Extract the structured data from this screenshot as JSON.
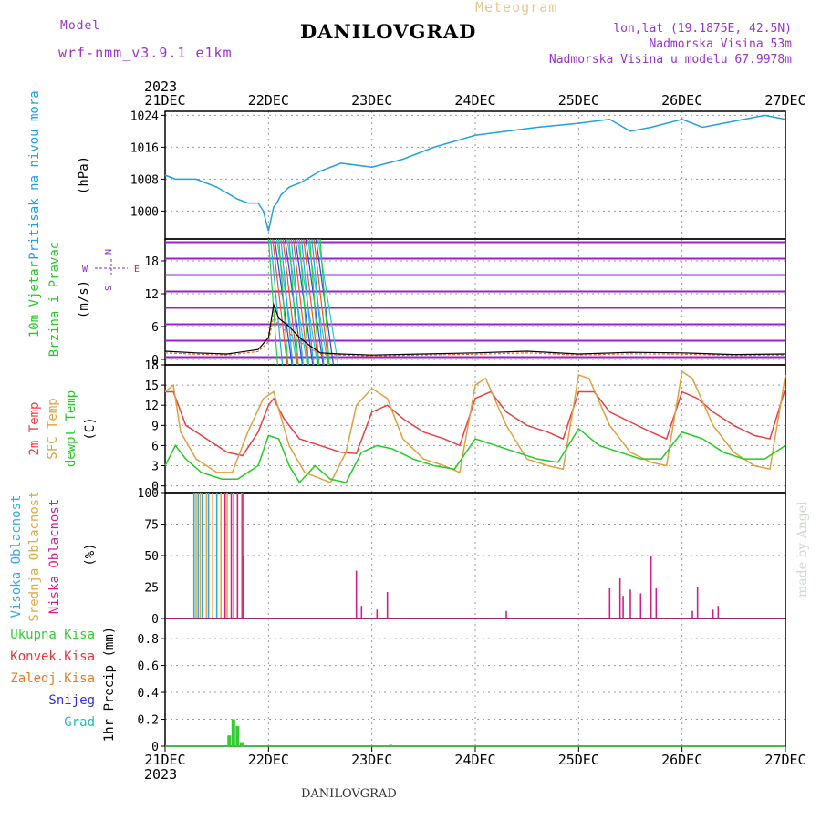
{
  "header": {
    "model_label": "Model",
    "model_name": "wrf-nmm_v3.9.1 e1km",
    "station": "DANILOVGRAD",
    "meteogram": "Meteogram",
    "lonlat": "lon,lat (19.1875E, 42.5N)",
    "elevation": "Nadmorska Visina 53m",
    "elevation_model": "Nadmorska Visina u modelu 67.9978m"
  },
  "footer": {
    "station": "DANILOVGRAD",
    "credit": "made by Angel"
  },
  "colors": {
    "pressure": "#22a0e0",
    "wind_purple": "#9922cc",
    "temp2m": "#e84040",
    "sfc": "#e0a040",
    "dewpt": "#22cc22",
    "high": "#33aadd",
    "mid": "#ddaa44",
    "low": "#cc2288",
    "rain": "#33cc33",
    "conv": "#ee3333",
    "frz": "#ee7722",
    "snow": "#3333dd",
    "hail": "#22bbbb"
  },
  "chart_data": [
    {
      "type": "line",
      "panel": "pressure",
      "ylabel": [
        "Pritisak na nivou mora",
        "(hPa)"
      ],
      "ylim": [
        993,
        1025
      ],
      "yticks": [
        1000,
        1008,
        1016,
        1024
      ],
      "xlim": [
        "2023-12-21 00",
        "2023-12-27 00"
      ],
      "xticks": [
        "21DEC",
        "22DEC",
        "23DEC",
        "24DEC",
        "25DEC",
        "26DEC",
        "27DEC"
      ],
      "year": "2023",
      "grid": true,
      "series": [
        {
          "x": [
            0,
            0.1,
            0.3,
            0.5,
            0.7,
            0.8,
            0.9,
            0.95,
            1.0,
            1.05,
            1.08,
            1.12,
            1.2,
            1.3,
            1.5,
            1.7,
            2.0,
            2.3,
            2.6,
            3.0,
            3.3,
            3.6,
            4.0,
            4.3,
            4.5,
            4.7,
            5.0,
            5.2,
            5.4,
            5.6,
            5.8,
            6.0
          ],
          "y": [
            1009,
            1008,
            1008,
            1006,
            1003,
            1002,
            1002,
            1000,
            995,
            1001,
            1002,
            1004,
            1006,
            1007,
            1010,
            1012,
            1011,
            1013,
            1016,
            1019,
            1020,
            1021,
            1022,
            1023,
            1020,
            1021,
            1023,
            1021,
            1022,
            1023,
            1024,
            1023
          ]
        }
      ]
    },
    {
      "type": "line",
      "panel": "wind",
      "ylabel": [
        "10m Vjetar",
        "Brzina i Pravac",
        "(m/s)"
      ],
      "ylim": [
        -1,
        22
      ],
      "yticks": [
        0,
        6,
        12,
        18
      ],
      "grid": true,
      "compass": {
        "north": "N",
        "east": "E",
        "west": "W",
        "south": "S"
      },
      "series": [
        {
          "name": "speed",
          "x": [
            0,
            0.3,
            0.6,
            0.9,
            1.0,
            1.05,
            1.1,
            1.2,
            1.3,
            1.4,
            1.5,
            1.7,
            2.0,
            2.5,
            3.0,
            3.5,
            4.0,
            4.5,
            5.0,
            5.5,
            6.0
          ],
          "y": [
            1.5,
            1.2,
            1.0,
            1.8,
            4,
            10,
            7.5,
            6,
            4,
            2.5,
            1.2,
            1.0,
            0.8,
            1.0,
            1.2,
            1.5,
            1.0,
            1.3,
            1.2,
            0.9,
            1.0
          ]
        }
      ]
    },
    {
      "type": "line",
      "panel": "temperature",
      "ylabel": [
        "2m Temp",
        "SFC Temp",
        "dewpt Temp",
        "(C)"
      ],
      "ylim": [
        -1,
        18
      ],
      "yticks": [
        0,
        3,
        6,
        9,
        12,
        15,
        18
      ],
      "grid": true,
      "series": [
        {
          "name": "2m Temp",
          "x": [
            0,
            0.08,
            0.2,
            0.4,
            0.6,
            0.75,
            0.9,
            1.0,
            1.05,
            1.15,
            1.3,
            1.5,
            1.7,
            1.85,
            2.0,
            2.15,
            2.3,
            2.5,
            2.7,
            2.85,
            3.0,
            3.15,
            3.3,
            3.5,
            3.7,
            3.85,
            4.0,
            4.15,
            4.3,
            4.5,
            4.7,
            4.85,
            5.0,
            5.15,
            5.3,
            5.5,
            5.7,
            5.85,
            6.0
          ],
          "y": [
            14,
            14,
            9,
            7,
            5,
            4.5,
            8,
            12,
            13,
            10,
            7,
            6,
            5,
            4.8,
            11,
            12,
            10,
            8,
            7,
            6,
            13,
            14,
            11,
            9,
            8,
            7,
            14,
            14,
            11,
            9.5,
            8,
            7,
            14,
            13,
            11,
            9,
            7.5,
            7,
            14.5
          ]
        },
        {
          "name": "SFC Temp",
          "x": [
            0,
            0.08,
            0.15,
            0.3,
            0.5,
            0.65,
            0.8,
            0.95,
            1.05,
            1.2,
            1.35,
            1.6,
            1.75,
            1.85,
            2.0,
            2.15,
            2.3,
            2.5,
            2.7,
            2.85,
            3.0,
            3.1,
            3.3,
            3.5,
            3.7,
            3.85,
            4.0,
            4.1,
            4.3,
            4.5,
            4.7,
            4.85,
            5.0,
            5.1,
            5.3,
            5.5,
            5.7,
            5.85,
            6.0
          ],
          "y": [
            14,
            15,
            8,
            4,
            2,
            2,
            8,
            13,
            14,
            6,
            2,
            0.5,
            5,
            12,
            14.5,
            13,
            7,
            4,
            3,
            2,
            15,
            16,
            9,
            4,
            3,
            2.5,
            16.5,
            16,
            9,
            5,
            3.5,
            3,
            17,
            16,
            9,
            5,
            3,
            2.5,
            16.5
          ]
        },
        {
          "name": "dewpt Temp",
          "x": [
            0,
            0.1,
            0.2,
            0.35,
            0.55,
            0.7,
            0.9,
            1.0,
            1.1,
            1.2,
            1.3,
            1.45,
            1.6,
            1.75,
            1.9,
            2.05,
            2.2,
            2.4,
            2.6,
            2.8,
            3.0,
            3.2,
            3.4,
            3.6,
            3.8,
            4.0,
            4.2,
            4.4,
            4.6,
            4.8,
            5.0,
            5.2,
            5.4,
            5.6,
            5.8,
            6.0
          ],
          "y": [
            3,
            6,
            4,
            2,
            1,
            1,
            3,
            7.5,
            7,
            3,
            0.5,
            3,
            1,
            0.5,
            5,
            6,
            5.5,
            4,
            3,
            2.5,
            7,
            6,
            5,
            4,
            3.5,
            8.5,
            6,
            5,
            4,
            4,
            8,
            7,
            5,
            4,
            4,
            6
          ]
        }
      ]
    },
    {
      "type": "bar",
      "panel": "clouds",
      "ylabel": [
        "Visoka Oblacnost",
        "Srednja Oblacnost",
        "Niska Oblacnost",
        "(%)"
      ],
      "ylim": [
        0,
        100
      ],
      "yticks": [
        0,
        25,
        50,
        75,
        100
      ],
      "grid": true,
      "series": [
        {
          "name": "Visoka Oblacnost",
          "x": [
            0.28,
            0.32,
            0.36,
            0.42,
            0.5
          ],
          "values": [
            100,
            100,
            100,
            100,
            100
          ]
        },
        {
          "name": "Srednja Oblacnost",
          "x": [
            0.3,
            0.34,
            0.4,
            0.46,
            0.54,
            0.6,
            0.66,
            0.74
          ],
          "values": [
            100,
            100,
            100,
            100,
            100,
            100,
            100,
            100
          ]
        },
        {
          "name": "Niska Oblacnost",
          "x": [
            0.58,
            0.64,
            0.7,
            0.75,
            0.76,
            1.85,
            1.9,
            2.05,
            2.15,
            3.3,
            4.3,
            4.4,
            4.43,
            4.5,
            4.6,
            4.7,
            4.75,
            5.1,
            5.15,
            5.3,
            5.35
          ],
          "values": [
            100,
            100,
            100,
            100,
            50,
            38,
            10,
            7,
            21,
            6,
            24,
            32,
            18,
            23,
            20,
            50,
            24,
            6,
            25,
            7,
            10
          ]
        }
      ]
    },
    {
      "type": "bar",
      "panel": "precip",
      "ylabel": [
        "1hr Precip (mm)"
      ],
      "legend": [
        "Ukupna Kisa",
        "Konvek.Kisa",
        "Zaledj.Kisa",
        "Snijeg",
        "Grad"
      ],
      "ylim": [
        0,
        0.95
      ],
      "yticks": [
        0,
        0.2,
        0.4,
        0.6,
        0.8
      ],
      "grid": true,
      "series": [
        {
          "name": "Ukupna Kisa",
          "x": [
            0.62,
            0.66,
            0.7,
            0.74,
            2.18
          ],
          "values": [
            0.08,
            0.2,
            0.15,
            0.03,
            0.01
          ]
        }
      ]
    }
  ]
}
